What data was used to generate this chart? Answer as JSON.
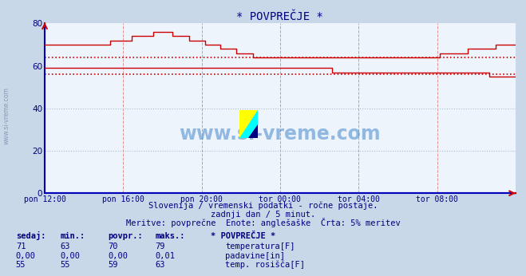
{
  "title": "* POVPREČJE *",
  "bg_color": "#c8d8e8",
  "plot_bg_color": "#eef4fc",
  "line_color_temp": "#cc0000",
  "line_color_dew": "#cc0000",
  "line_color_precip": "#0000cc",
  "avg_line_color": "#cc0000",
  "grid_color_v": "#dd8888",
  "grid_color_h": "#aabbcc",
  "ylabel_ticks": [
    0,
    20,
    40,
    60,
    80
  ],
  "xlabel_ticks": [
    "pon 12:00",
    "pon 16:00",
    "pon 20:00",
    "tor 00:00",
    "tor 04:00",
    "tor 08:00"
  ],
  "subtitle1": "Slovenija / vremenski podatki - ročne postaje.",
  "subtitle2": "zadnji dan / 5 minut.",
  "subtitle3": "Meritve: povprečne  Enote: anglešaške  Črta: 5% meritev",
  "temp_avg_line": 64,
  "dew_avg_line": 56,
  "watermark": "www.si-vreme.com",
  "legend_title": "* POVPREČJE *",
  "legend_items": [
    {
      "label": "temperatura[F]",
      "color": "#cc0000"
    },
    {
      "label": "padavine[in]",
      "color": "#0000cc"
    },
    {
      "label": "temp. rosišča[F]",
      "color": "#cc0000"
    }
  ],
  "table_headers": [
    "sedaj:",
    "min.:",
    "povpr.:",
    "maks.:"
  ],
  "table_rows": [
    [
      "71",
      "63",
      "70",
      "79"
    ],
    [
      "0,00",
      "0,00",
      "0,00",
      "0,01"
    ],
    [
      "55",
      "55",
      "59",
      "63"
    ]
  ]
}
